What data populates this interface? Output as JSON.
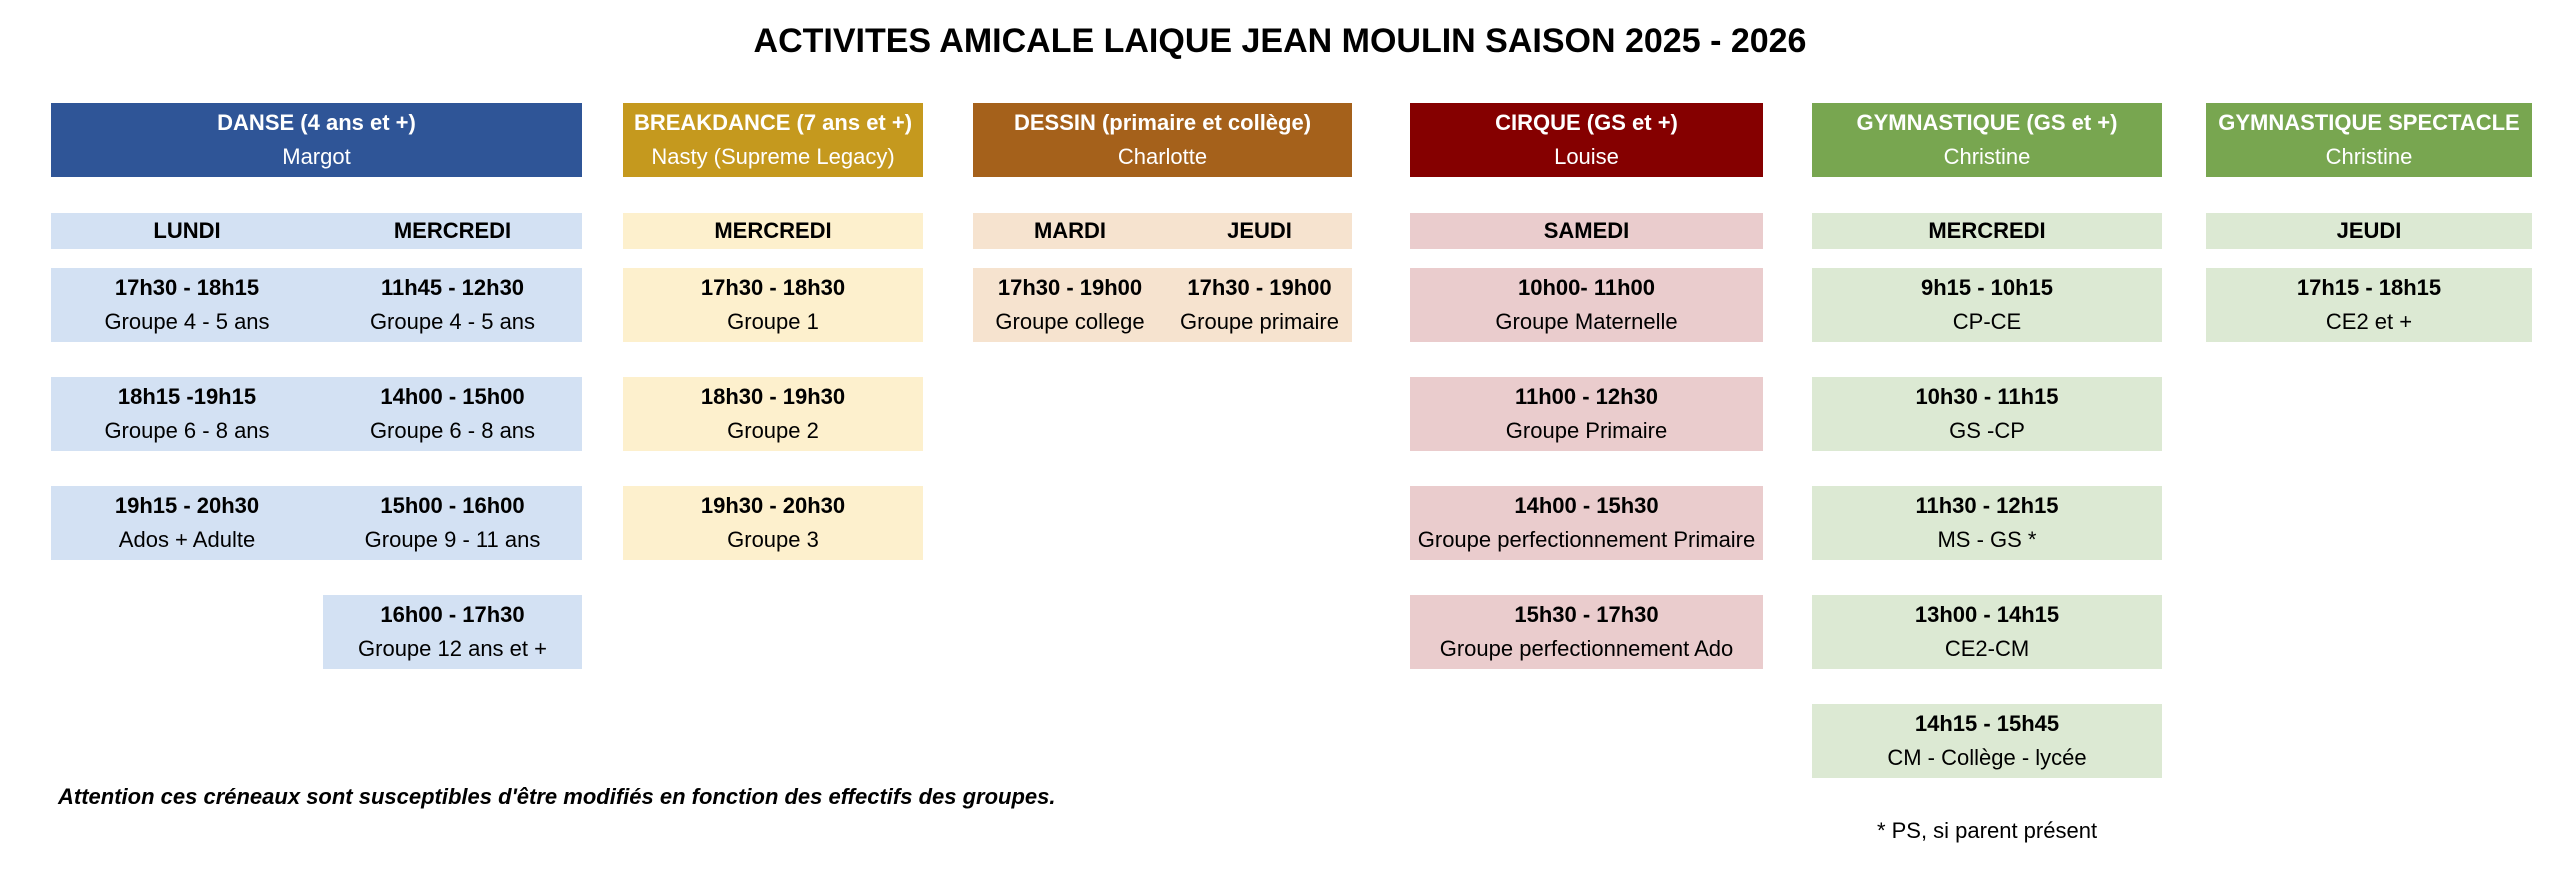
{
  "title": "ACTIVITES AMICALE LAIQUE JEAN MOULIN SAISON 2025 - 2026",
  "activities": [
    {
      "name": "DANSE (4 ans et +)",
      "teacher": "Margot",
      "days": [
        {
          "day": "LUNDI",
          "slots": [
            {
              "time": "17h30 - 18h15",
              "group": "Groupe 4 - 5 ans"
            },
            {
              "time": "18h15 -19h15",
              "group": "Groupe 6 - 8 ans"
            },
            {
              "time": "19h15 - 20h30",
              "group": "Ados + Adulte"
            }
          ]
        },
        {
          "day": "MERCREDI",
          "slots": [
            {
              "time": "11h45 - 12h30",
              "group": "Groupe 4 - 5 ans"
            },
            {
              "time": "14h00 - 15h00",
              "group": "Groupe 6 - 8 ans"
            },
            {
              "time": "15h00 - 16h00",
              "group": "Groupe 9 - 11 ans"
            },
            {
              "time": "16h00 - 17h30",
              "group": "Groupe 12 ans et +"
            }
          ]
        }
      ]
    },
    {
      "name": "BREAKDANCE (7 ans et +)",
      "teacher": "Nasty (Supreme Legacy)",
      "days": [
        {
          "day": "MERCREDI",
          "slots": [
            {
              "time": "17h30 - 18h30",
              "group": "Groupe 1"
            },
            {
              "time": "18h30 - 19h30",
              "group": "Groupe 2"
            },
            {
              "time": "19h30 - 20h30",
              "group": "Groupe 3"
            }
          ]
        }
      ]
    },
    {
      "name": "DESSIN (primaire et collège)",
      "teacher": "Charlotte",
      "days": [
        {
          "day": "MARDI",
          "slots": [
            {
              "time": "17h30 - 19h00",
              "group": "Groupe college"
            }
          ]
        },
        {
          "day": "JEUDI",
          "slots": [
            {
              "time": "17h30 - 19h00",
              "group": "Groupe primaire"
            }
          ]
        }
      ]
    },
    {
      "name": "CIRQUE (GS et +)",
      "teacher": "Louise",
      "days": [
        {
          "day": "SAMEDI",
          "slots": [
            {
              "time": "10h00- 11h00",
              "group": "Groupe Maternelle"
            },
            {
              "time": "11h00 - 12h30",
              "group": "Groupe Primaire"
            },
            {
              "time": "14h00 - 15h30",
              "group": "Groupe perfectionnement Primaire"
            },
            {
              "time": "15h30 - 17h30",
              "group": "Groupe perfectionnement Ado"
            }
          ]
        }
      ]
    },
    {
      "name": "GYMNASTIQUE (GS et +)",
      "teacher": "Christine",
      "days": [
        {
          "day": "MERCREDI",
          "slots": [
            {
              "time": "9h15 - 10h15",
              "group": "CP-CE"
            },
            {
              "time": "10h30 - 11h15",
              "group": "GS -CP"
            },
            {
              "time": "11h30 - 12h15",
              "group": "MS - GS *"
            },
            {
              "time": "13h00 - 14h15",
              "group": "CE2-CM"
            },
            {
              "time": "14h15 - 15h45",
              "group": "CM - Collège - lycée"
            }
          ]
        }
      ]
    },
    {
      "name": "GYMNASTIQUE SPECTACLE",
      "teacher": "Christine",
      "days": [
        {
          "day": "JEUDI",
          "slots": [
            {
              "time": "17h15 - 18h15",
              "group": "CE2 et +"
            }
          ]
        }
      ]
    }
  ],
  "note": "Attention ces créneaux sont susceptibles d'être modifiés en fonction des effectifs des groupes.",
  "footnote": "* PS, si parent présent",
  "colors": {
    "danse": "#2f5597",
    "breakdance": "#c5991e",
    "dessin": "#a5611b",
    "cirque": "#850000",
    "gymnastique": "#78a650"
  }
}
